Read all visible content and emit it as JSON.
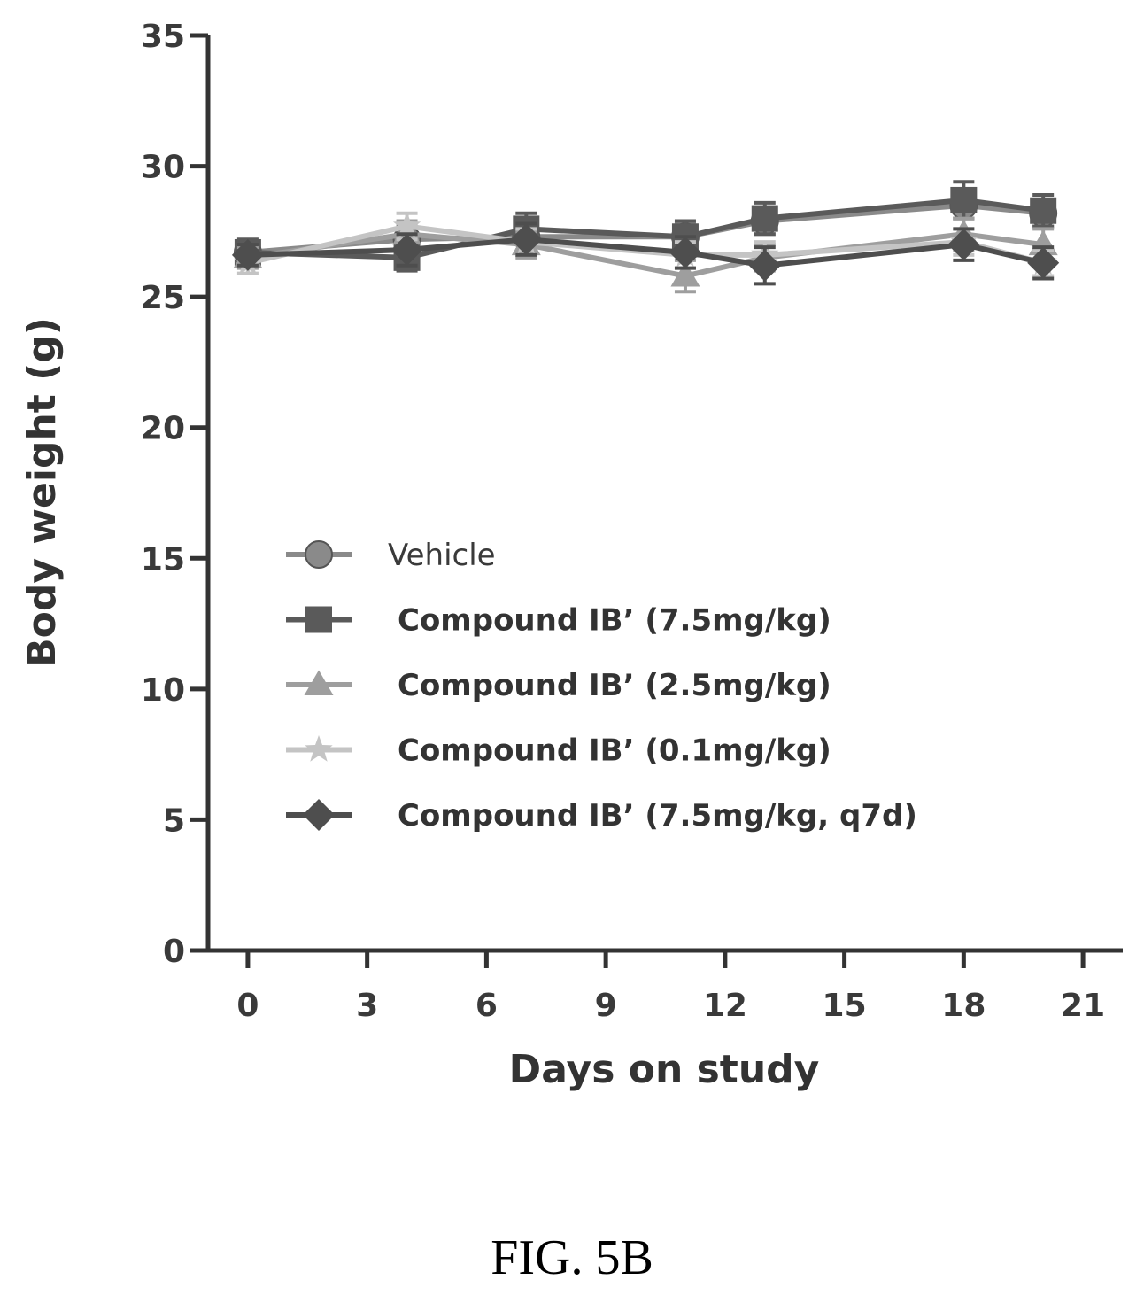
{
  "figure_label": "FIG. 5B",
  "chart_data": {
    "type": "line",
    "title": "",
    "xlabel": "Days on study",
    "ylabel": "Body weight (g)",
    "xlim": [
      -1,
      22
    ],
    "ylim": [
      0,
      35
    ],
    "xticks": [
      0,
      3,
      6,
      9,
      12,
      15,
      18,
      21
    ],
    "yticks": [
      0,
      5,
      10,
      15,
      20,
      25,
      30,
      35
    ],
    "legend_position": "center-left",
    "error_bars": true,
    "series": [
      {
        "name": "Vehicle",
        "marker": "circle",
        "color": "#8a8a8a",
        "x": [
          0,
          4,
          7,
          11,
          13,
          18,
          20
        ],
        "y": [
          26.7,
          27.2,
          27.3,
          27.3,
          27.9,
          28.5,
          28.2
        ],
        "err": [
          0.4,
          0.5,
          0.5,
          0.5,
          0.5,
          0.5,
          0.5
        ]
      },
      {
        "name": "Compound IB’ (7.5mg/kg)",
        "marker": "square",
        "color": "#5a5a5a",
        "x": [
          0,
          4,
          7,
          11,
          13,
          18,
          20
        ],
        "y": [
          26.7,
          26.5,
          27.6,
          27.3,
          28.0,
          28.7,
          28.3
        ],
        "err": [
          0.5,
          0.5,
          0.6,
          0.6,
          0.6,
          0.7,
          0.6
        ]
      },
      {
        "name": "Compound IB’ (2.5mg/kg)",
        "marker": "triangle",
        "color": "#9e9e9e",
        "x": [
          0,
          4,
          7,
          11,
          13,
          18,
          20
        ],
        "y": [
          26.5,
          27.4,
          27.0,
          25.8,
          26.5,
          27.4,
          27.0
        ],
        "err": [
          0.4,
          0.5,
          0.5,
          0.6,
          0.5,
          0.6,
          0.6
        ]
      },
      {
        "name": "Compound IB’ (0.1mg/kg)",
        "marker": "star",
        "color": "#c4c4c4",
        "x": [
          0,
          4,
          7,
          11,
          13,
          18,
          20
        ],
        "y": [
          26.3,
          27.7,
          27.1,
          26.6,
          26.6,
          27.1,
          26.3
        ],
        "err": [
          0.4,
          0.5,
          0.5,
          0.5,
          0.5,
          0.5,
          0.5
        ]
      },
      {
        "name": "Compound IB’ (7.5mg/kg, q7d)",
        "marker": "diamond",
        "color": "#4e4e4e",
        "x": [
          0,
          4,
          7,
          11,
          13,
          18,
          20
        ],
        "y": [
          26.6,
          26.8,
          27.2,
          26.7,
          26.2,
          27.0,
          26.3
        ],
        "err": [
          0.4,
          0.6,
          0.6,
          0.6,
          0.7,
          0.6,
          0.6
        ]
      }
    ]
  }
}
